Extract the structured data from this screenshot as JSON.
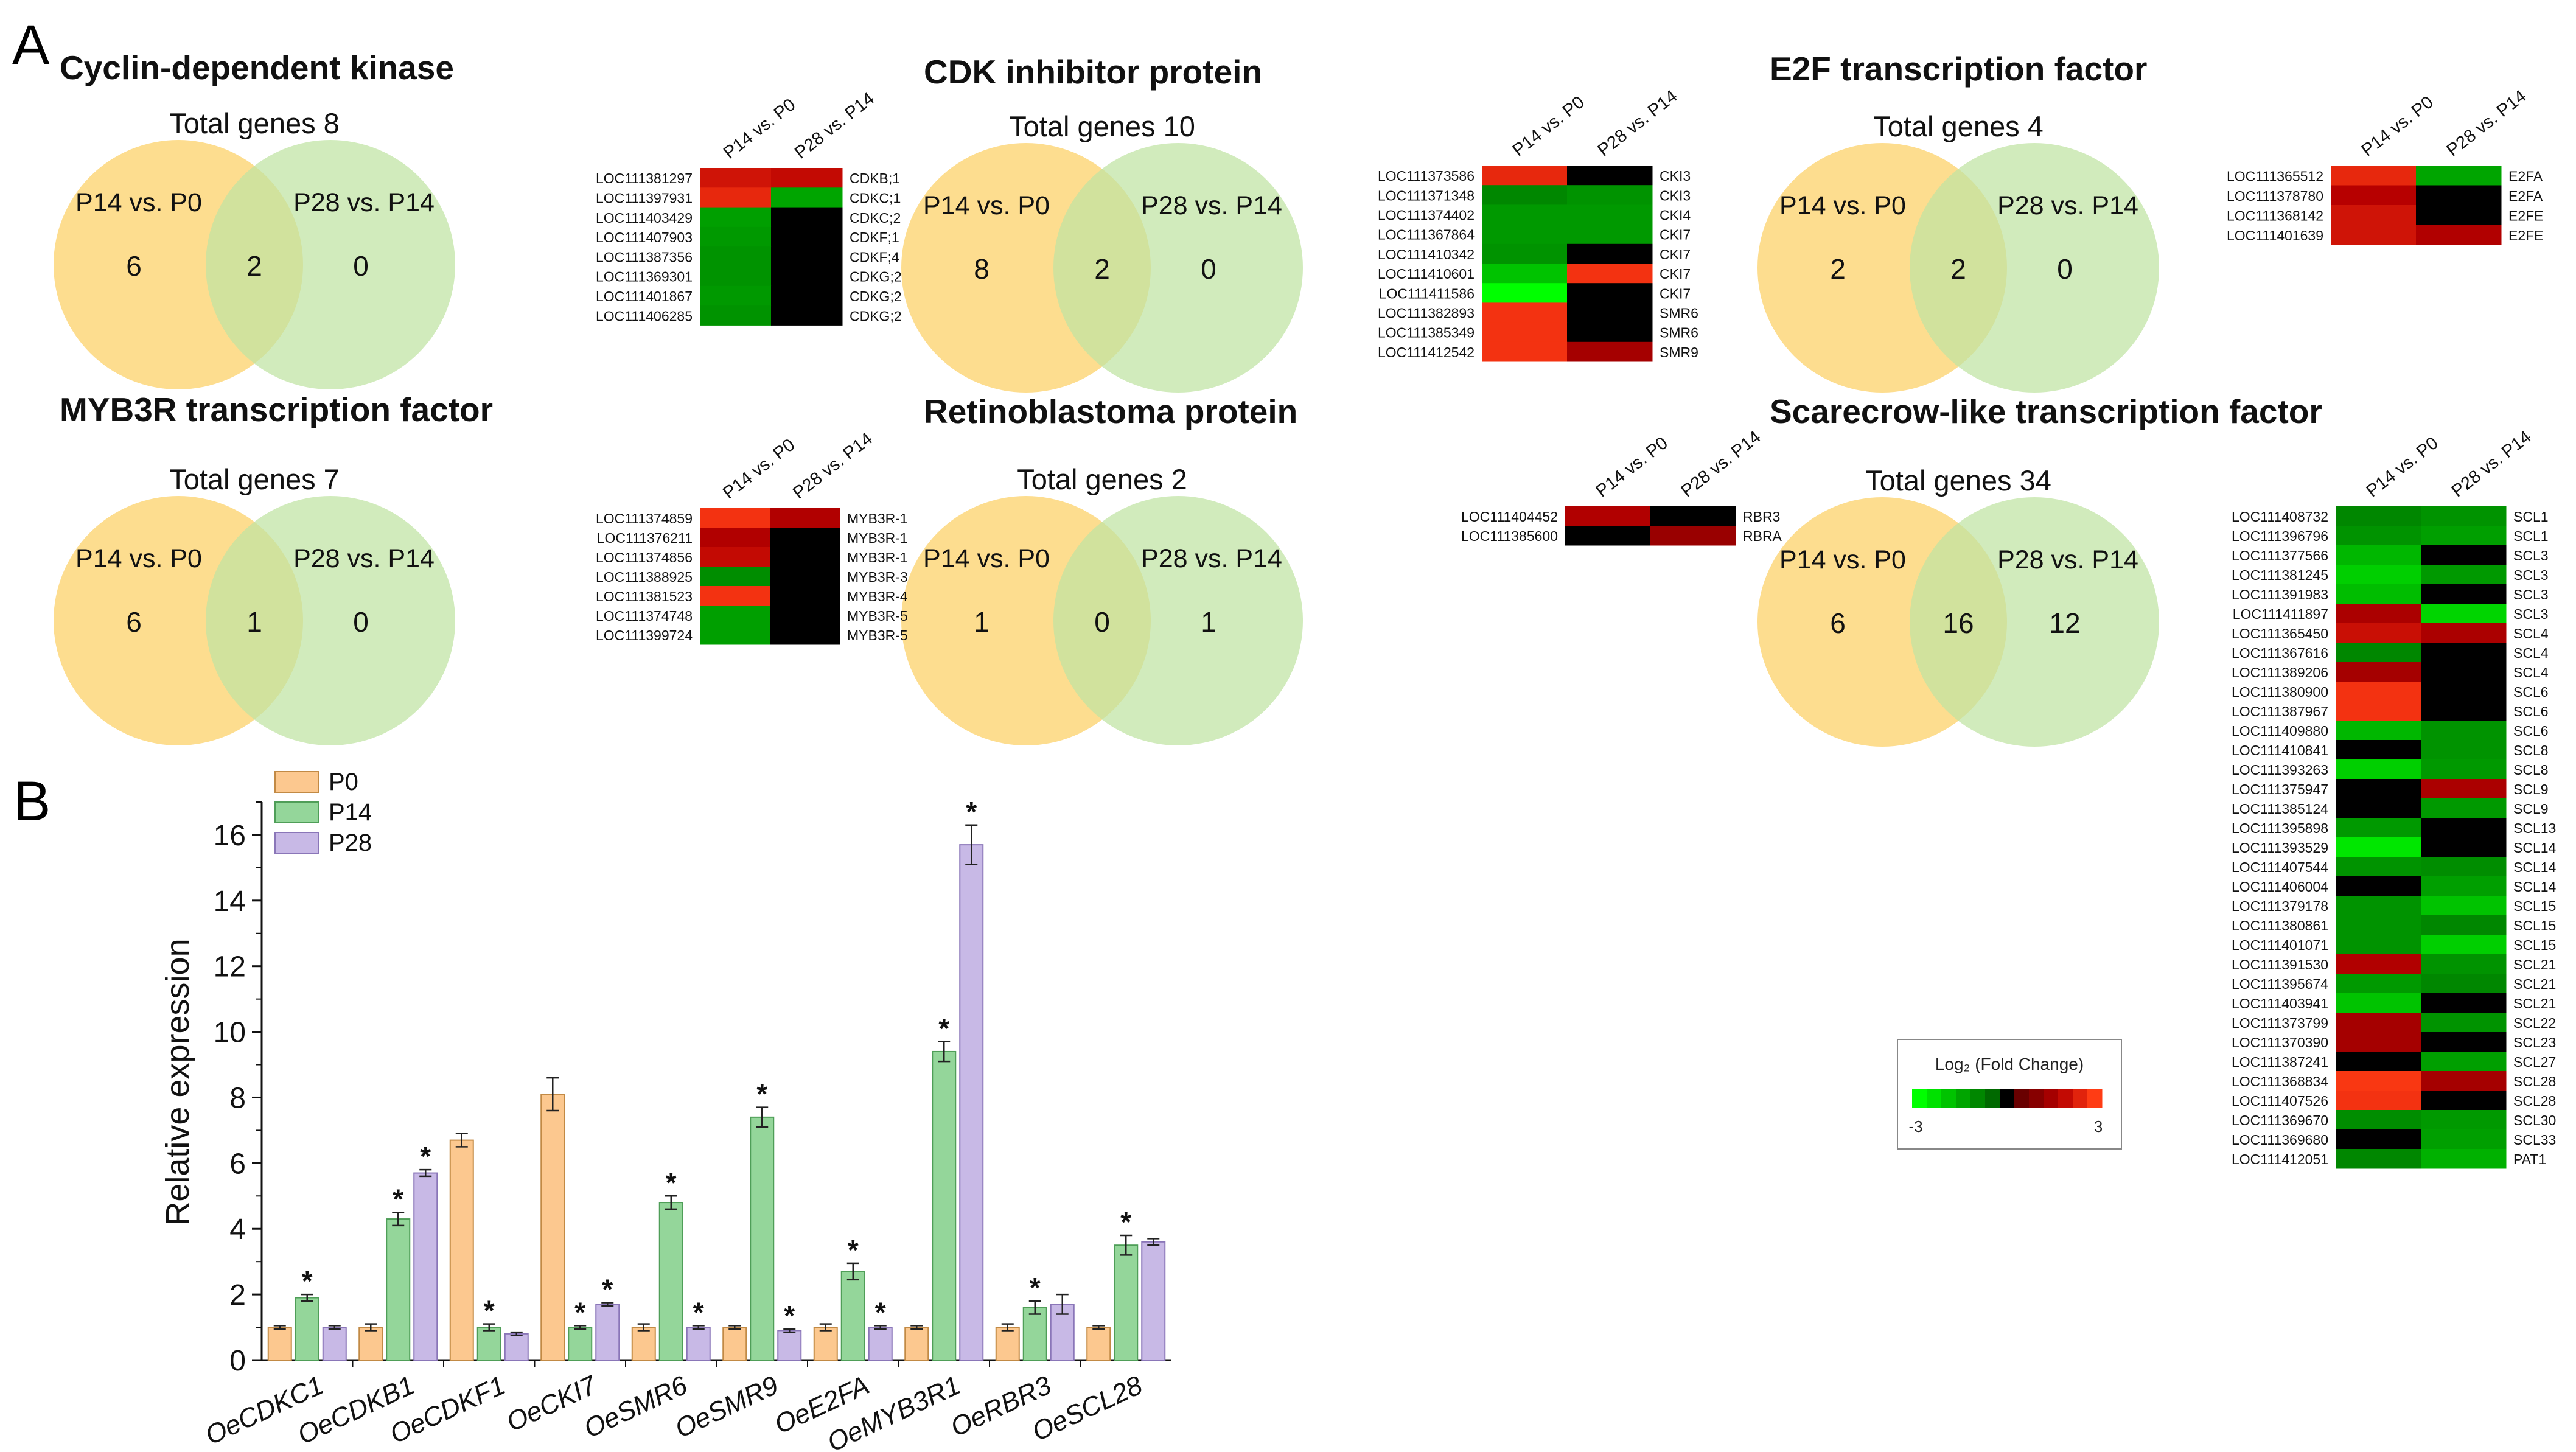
{
  "panel_labels": {
    "a": "A",
    "b": "B"
  },
  "colors": {
    "venn_left": "#fdd77b",
    "venn_right": "#bfe3a2",
    "p0": "#fcc88f",
    "p14": "#94d69a",
    "p28": "#c8b9e6",
    "heat_neg": "#00ff00",
    "heat_zero": "#000000",
    "heat_pos": "#ff3a1a"
  },
  "heat_header": [
    "P14 vs. P0",
    "P28 vs. P14"
  ],
  "legend_heat": {
    "title": "Log₂ (Fold Change)",
    "min_label": "-3",
    "max_label": "3"
  },
  "venns": [
    {
      "title": "Cyclin-dependent kinase",
      "total": "Total genes 8",
      "left_label": "P14 vs. P0",
      "right_label": "P28 vs. P14",
      "left_only": "6",
      "both": "2",
      "right_only": "0"
    },
    {
      "title": "CDK inhibitor protein",
      "total": "Total genes 10",
      "left_label": "P14 vs. P0",
      "right_label": "P28 vs. P14",
      "left_only": "8",
      "both": "2",
      "right_only": "0"
    },
    {
      "title": "E2F transcription factor",
      "total": "Total genes 4",
      "left_label": "P14 vs. P0",
      "right_label": "P28 vs. P14",
      "left_only": "2",
      "both": "2",
      "right_only": "0"
    },
    {
      "title": "MYB3R transcription factor",
      "total": "Total genes 7",
      "left_label": "P14 vs. P0",
      "right_label": "P28 vs. P14",
      "left_only": "6",
      "both": "1",
      "right_only": "0"
    },
    {
      "title": "Retinoblastoma protein",
      "total": "Total genes 2",
      "left_label": "P14 vs. P0",
      "right_label": "P28 vs. P14",
      "left_only": "1",
      "both": "0",
      "right_only": "1"
    },
    {
      "title": "Scarecrow-like transcription factor",
      "total": "Total genes 34",
      "left_label": "P14 vs. P0",
      "right_label": "P28 vs. P14",
      "left_only": "6",
      "both": "16",
      "right_only": "12"
    }
  ],
  "heatmaps": [
    {
      "name": "cdk",
      "rows": [
        {
          "id": "LOC111381297",
          "gene": "CDKB;1",
          "v": [
            2.2,
            2.0
          ]
        },
        {
          "id": "LOC111397931",
          "gene": "CDKC;1",
          "v": [
            2.6,
            -1.5
          ]
        },
        {
          "id": "LOC111403429",
          "gene": "CDKC;2",
          "v": [
            -1.4,
            0
          ]
        },
        {
          "id": "LOC111407903",
          "gene": "CDKF;1",
          "v": [
            -1.3,
            0
          ]
        },
        {
          "id": "LOC111387356",
          "gene": "CDKF;4",
          "v": [
            -1.2,
            0
          ]
        },
        {
          "id": "LOC111369301",
          "gene": "CDKG;2",
          "v": [
            -1.2,
            0
          ]
        },
        {
          "id": "LOC111401867",
          "gene": "CDKG;2",
          "v": [
            -1.3,
            0
          ]
        },
        {
          "id": "LOC111406285",
          "gene": "CDKG;2",
          "v": [
            -1.2,
            0
          ]
        }
      ]
    },
    {
      "name": "cki",
      "rows": [
        {
          "id": "LOC111373586",
          "gene": "CKI3",
          "v": [
            2.6,
            0
          ]
        },
        {
          "id": "LOC111371348",
          "gene": "CKI3",
          "v": [
            -1.0,
            -1.2
          ]
        },
        {
          "id": "LOC111374402",
          "gene": "CKI4",
          "v": [
            -1.3,
            -1.3
          ]
        },
        {
          "id": "LOC111367864",
          "gene": "CKI7",
          "v": [
            -1.3,
            -1.3
          ]
        },
        {
          "id": "LOC111410342",
          "gene": "CKI7",
          "v": [
            -1.2,
            0
          ]
        },
        {
          "id": "LOC111410601",
          "gene": "CKI7",
          "v": [
            -2.0,
            2.8
          ]
        },
        {
          "id": "LOC111411586",
          "gene": "CKI7",
          "v": [
            -3.0,
            0
          ]
        },
        {
          "id": "LOC111382893",
          "gene": "SMR6",
          "v": [
            2.8,
            0
          ]
        },
        {
          "id": "LOC111385349",
          "gene": "SMR6",
          "v": [
            2.8,
            0
          ]
        },
        {
          "id": "LOC111412542",
          "gene": "SMR9",
          "v": [
            2.8,
            1.5
          ]
        }
      ]
    },
    {
      "name": "e2f",
      "rows": [
        {
          "id": "LOC111365512",
          "gene": "E2FA",
          "v": [
            2.6,
            -1.5
          ]
        },
        {
          "id": "LOC111378780",
          "gene": "E2FA",
          "v": [
            1.8,
            0
          ]
        },
        {
          "id": "LOC111368142",
          "gene": "E2FE",
          "v": [
            2.2,
            0
          ]
        },
        {
          "id": "LOC111401639",
          "gene": "E2FE",
          "v": [
            2.2,
            1.7
          ]
        }
      ]
    },
    {
      "name": "myb",
      "rows": [
        {
          "id": "LOC111374859",
          "gene": "MYB3R-1",
          "v": [
            2.8,
            1.7
          ]
        },
        {
          "id": "LOC111376211",
          "gene": "MYB3R-1",
          "v": [
            1.7,
            0
          ]
        },
        {
          "id": "LOC111374856",
          "gene": "MYB3R-1",
          "v": [
            2.0,
            0
          ]
        },
        {
          "id": "LOC111388925",
          "gene": "MYB3R-3",
          "v": [
            -1.1,
            0
          ]
        },
        {
          "id": "LOC111381523",
          "gene": "MYB3R-4",
          "v": [
            2.8,
            0
          ]
        },
        {
          "id": "LOC111374748",
          "gene": "MYB3R-5",
          "v": [
            -1.4,
            0
          ]
        },
        {
          "id": "LOC111399724",
          "gene": "MYB3R-5",
          "v": [
            -1.4,
            0
          ]
        }
      ]
    },
    {
      "name": "rb",
      "rows": [
        {
          "id": "LOC111404452",
          "gene": "RBR3",
          "v": [
            1.7,
            0
          ]
        },
        {
          "id": "LOC111385600",
          "gene": "RBRA",
          "v": [
            0,
            1.3
          ]
        }
      ]
    },
    {
      "name": "scl",
      "rows": [
        {
          "id": "LOC111408732",
          "gene": "SCL1",
          "v": [
            -1.0,
            -1.2
          ]
        },
        {
          "id": "LOC111396796",
          "gene": "SCL1",
          "v": [
            -1.2,
            -1.4
          ]
        },
        {
          "id": "LOC111377566",
          "gene": "SCL3",
          "v": [
            -1.8,
            0
          ]
        },
        {
          "id": "LOC111381245",
          "gene": "SCL3",
          "v": [
            -2.2,
            -1.3
          ]
        },
        {
          "id": "LOC111391983",
          "gene": "SCL3",
          "v": [
            -1.9,
            0
          ]
        },
        {
          "id": "LOC111411897",
          "gene": "SCL3",
          "v": [
            1.6,
            -2.3
          ]
        },
        {
          "id": "LOC111365450",
          "gene": "SCL4",
          "v": [
            2.1,
            1.6
          ]
        },
        {
          "id": "LOC111367616",
          "gene": "SCL4",
          "v": [
            -1.0,
            0
          ]
        },
        {
          "id": "LOC111389206",
          "gene": "SCL4",
          "v": [
            1.5,
            0
          ]
        },
        {
          "id": "LOC111380900",
          "gene": "SCL6",
          "v": [
            2.8,
            0
          ]
        },
        {
          "id": "LOC111387967",
          "gene": "SCL6",
          "v": [
            2.8,
            0
          ]
        },
        {
          "id": "LOC111409880",
          "gene": "SCL6",
          "v": [
            -1.8,
            -1.2
          ]
        },
        {
          "id": "LOC111410841",
          "gene": "SCL8",
          "v": [
            0,
            -1.2
          ]
        },
        {
          "id": "LOC111393263",
          "gene": "SCL8",
          "v": [
            -2.2,
            -1.3
          ]
        },
        {
          "id": "LOC111375947",
          "gene": "SCL9",
          "v": [
            0,
            1.6
          ]
        },
        {
          "id": "LOC111385124",
          "gene": "SCL9",
          "v": [
            0,
            -1.3
          ]
        },
        {
          "id": "LOC111395898",
          "gene": "SCL13",
          "v": [
            -1.3,
            0
          ]
        },
        {
          "id": "LOC111393529",
          "gene": "SCL14",
          "v": [
            -2.6,
            0
          ]
        },
        {
          "id": "LOC111407544",
          "gene": "SCL14",
          "v": [
            -1.2,
            -1.1
          ]
        },
        {
          "id": "LOC111406004",
          "gene": "SCL14",
          "v": [
            0,
            -1.4
          ]
        },
        {
          "id": "LOC111379178",
          "gene": "SCL15",
          "v": [
            -1.2,
            -2.0
          ]
        },
        {
          "id": "LOC111380861",
          "gene": "SCL15",
          "v": [
            -1.2,
            -1.0
          ]
        },
        {
          "id": "LOC111401071",
          "gene": "SCL15",
          "v": [
            -1.2,
            -2.2
          ]
        },
        {
          "id": "LOC111391530",
          "gene": "SCL21",
          "v": [
            1.7,
            -1.2
          ]
        },
        {
          "id": "LOC111395674",
          "gene": "SCL21",
          "v": [
            -1.3,
            -1.0
          ]
        },
        {
          "id": "LOC111403941",
          "gene": "SCL21",
          "v": [
            -2.0,
            0
          ]
        },
        {
          "id": "LOC111373799",
          "gene": "SCL22",
          "v": [
            1.5,
            -1.2
          ]
        },
        {
          "id": "LOC111370390",
          "gene": "SCL23",
          "v": [
            1.5,
            0
          ]
        },
        {
          "id": "LOC111387241",
          "gene": "SCL27",
          "v": [
            0,
            -1.4
          ]
        },
        {
          "id": "LOC111368834",
          "gene": "SCL28",
          "v": [
            2.9,
            1.5
          ]
        },
        {
          "id": "LOC111407526",
          "gene": "SCL28",
          "v": [
            2.8,
            0
          ]
        },
        {
          "id": "LOC111369670",
          "gene": "SCL30",
          "v": [
            -1.1,
            -1.3
          ]
        },
        {
          "id": "LOC111369680",
          "gene": "SCL33",
          "v": [
            0,
            -1.4
          ]
        },
        {
          "id": "LOC111412051",
          "gene": "PAT1",
          "v": [
            -1.0,
            -1.7
          ]
        }
      ]
    }
  ],
  "chart_data": {
    "type": "bar",
    "title": "",
    "xlabel": "",
    "ylabel": "Relative expression",
    "ylim": [
      0,
      17
    ],
    "yticks": [
      0,
      2,
      4,
      6,
      8,
      10,
      12,
      14,
      16
    ],
    "categories": [
      "OeCDKC1",
      "OeCDKB1",
      "OeCDKF1",
      "OeCKI7",
      "OeSMR6",
      "OeSMR9",
      "OeE2FA",
      "OeMYB3R1",
      "OeRBR3",
      "OeSCL28"
    ],
    "series": [
      {
        "name": "P0",
        "values": [
          1,
          1,
          6.7,
          8.1,
          1,
          1,
          1,
          1,
          1,
          1
        ],
        "errors": [
          0.05,
          0.1,
          0.2,
          0.5,
          0.1,
          0.05,
          0.1,
          0.05,
          0.1,
          0.05
        ],
        "significant": [
          false,
          false,
          false,
          false,
          false,
          false,
          false,
          false,
          false,
          false
        ]
      },
      {
        "name": "P14",
        "values": [
          1.9,
          4.3,
          1.0,
          1.0,
          4.8,
          7.4,
          2.7,
          9.4,
          1.6,
          3.5
        ],
        "errors": [
          0.1,
          0.2,
          0.1,
          0.05,
          0.2,
          0.3,
          0.25,
          0.3,
          0.2,
          0.3
        ],
        "significant": [
          true,
          true,
          true,
          true,
          true,
          true,
          true,
          true,
          true,
          true
        ]
      },
      {
        "name": "P28",
        "values": [
          1.0,
          5.7,
          0.8,
          1.7,
          1.0,
          0.9,
          1.0,
          15.7,
          1.7,
          3.6
        ],
        "errors": [
          0.05,
          0.1,
          0.05,
          0.05,
          0.05,
          0.05,
          0.05,
          0.6,
          0.3,
          0.1
        ],
        "significant": [
          false,
          true,
          false,
          true,
          true,
          true,
          true,
          true,
          false,
          false
        ]
      }
    ],
    "significance_marker": "*"
  }
}
